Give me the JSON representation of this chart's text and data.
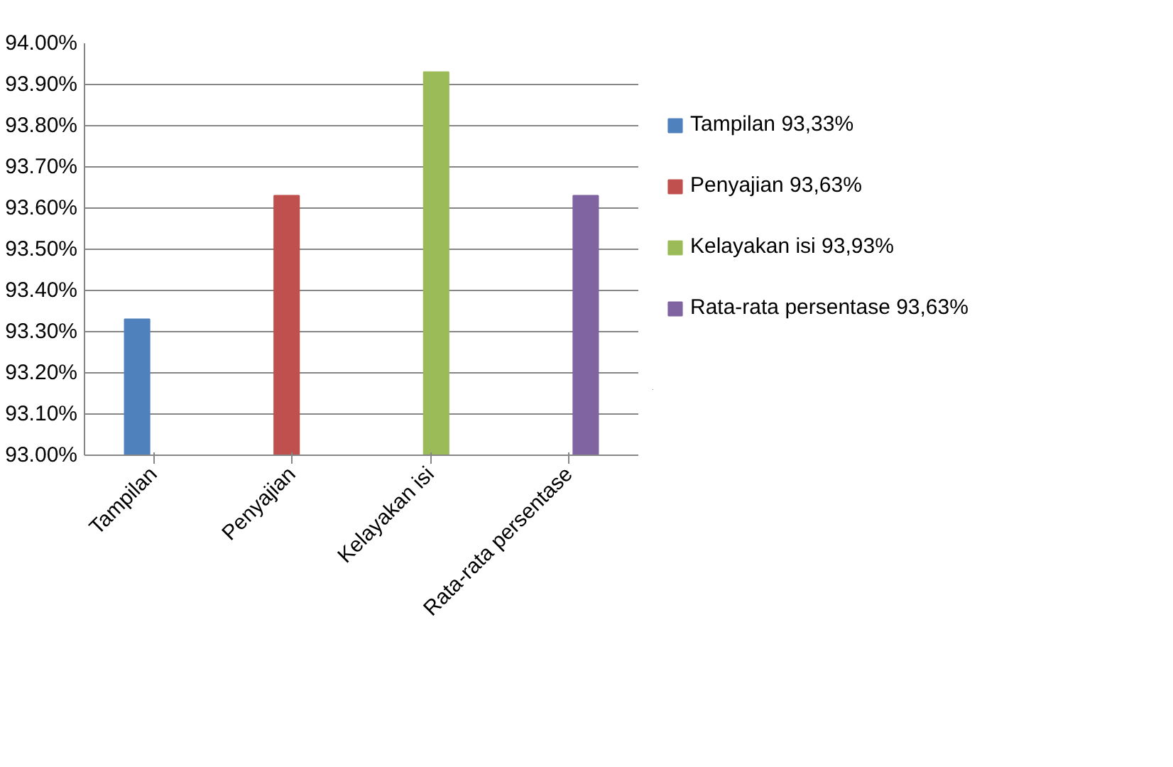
{
  "chart_data": {
    "type": "bar",
    "categories": [
      "Tampilan",
      "Penyajian",
      "Kelayakan isi",
      "Rata-rata persentase"
    ],
    "series": [
      {
        "name": "Tampilan 93,33%",
        "color": "#4f81bd",
        "values": [
          93.33,
          null,
          null,
          null
        ]
      },
      {
        "name": "Penyajian 93,63%",
        "color": "#c0504d",
        "values": [
          null,
          93.63,
          null,
          null
        ]
      },
      {
        "name": "Kelayakan isi 93,93%",
        "color": "#9bbb59",
        "values": [
          null,
          null,
          93.93,
          null
        ]
      },
      {
        "name": "Rata-rata persentase 93,63%",
        "color": "#8064a2",
        "values": [
          null,
          null,
          null,
          93.63
        ]
      }
    ],
    "ylim": [
      93,
      94
    ],
    "yticks": [
      {
        "value": 93,
        "label": "93.00%"
      },
      {
        "value": 93.1,
        "label": "93.10%"
      },
      {
        "value": 93.2,
        "label": "93.20%"
      },
      {
        "value": 93.3,
        "label": "93.30%"
      },
      {
        "value": 93.4,
        "label": "93.40%"
      },
      {
        "value": 93.5,
        "label": "93.50%"
      },
      {
        "value": 93.6,
        "label": "93.60%"
      },
      {
        "value": 93.7,
        "label": "93.70%"
      },
      {
        "value": 93.8,
        "label": "93.80%"
      },
      {
        "value": 93.9,
        "label": "93.90%"
      },
      {
        "value": 94,
        "label": "94.00%"
      }
    ],
    "grid": "y",
    "legend": "right"
  }
}
